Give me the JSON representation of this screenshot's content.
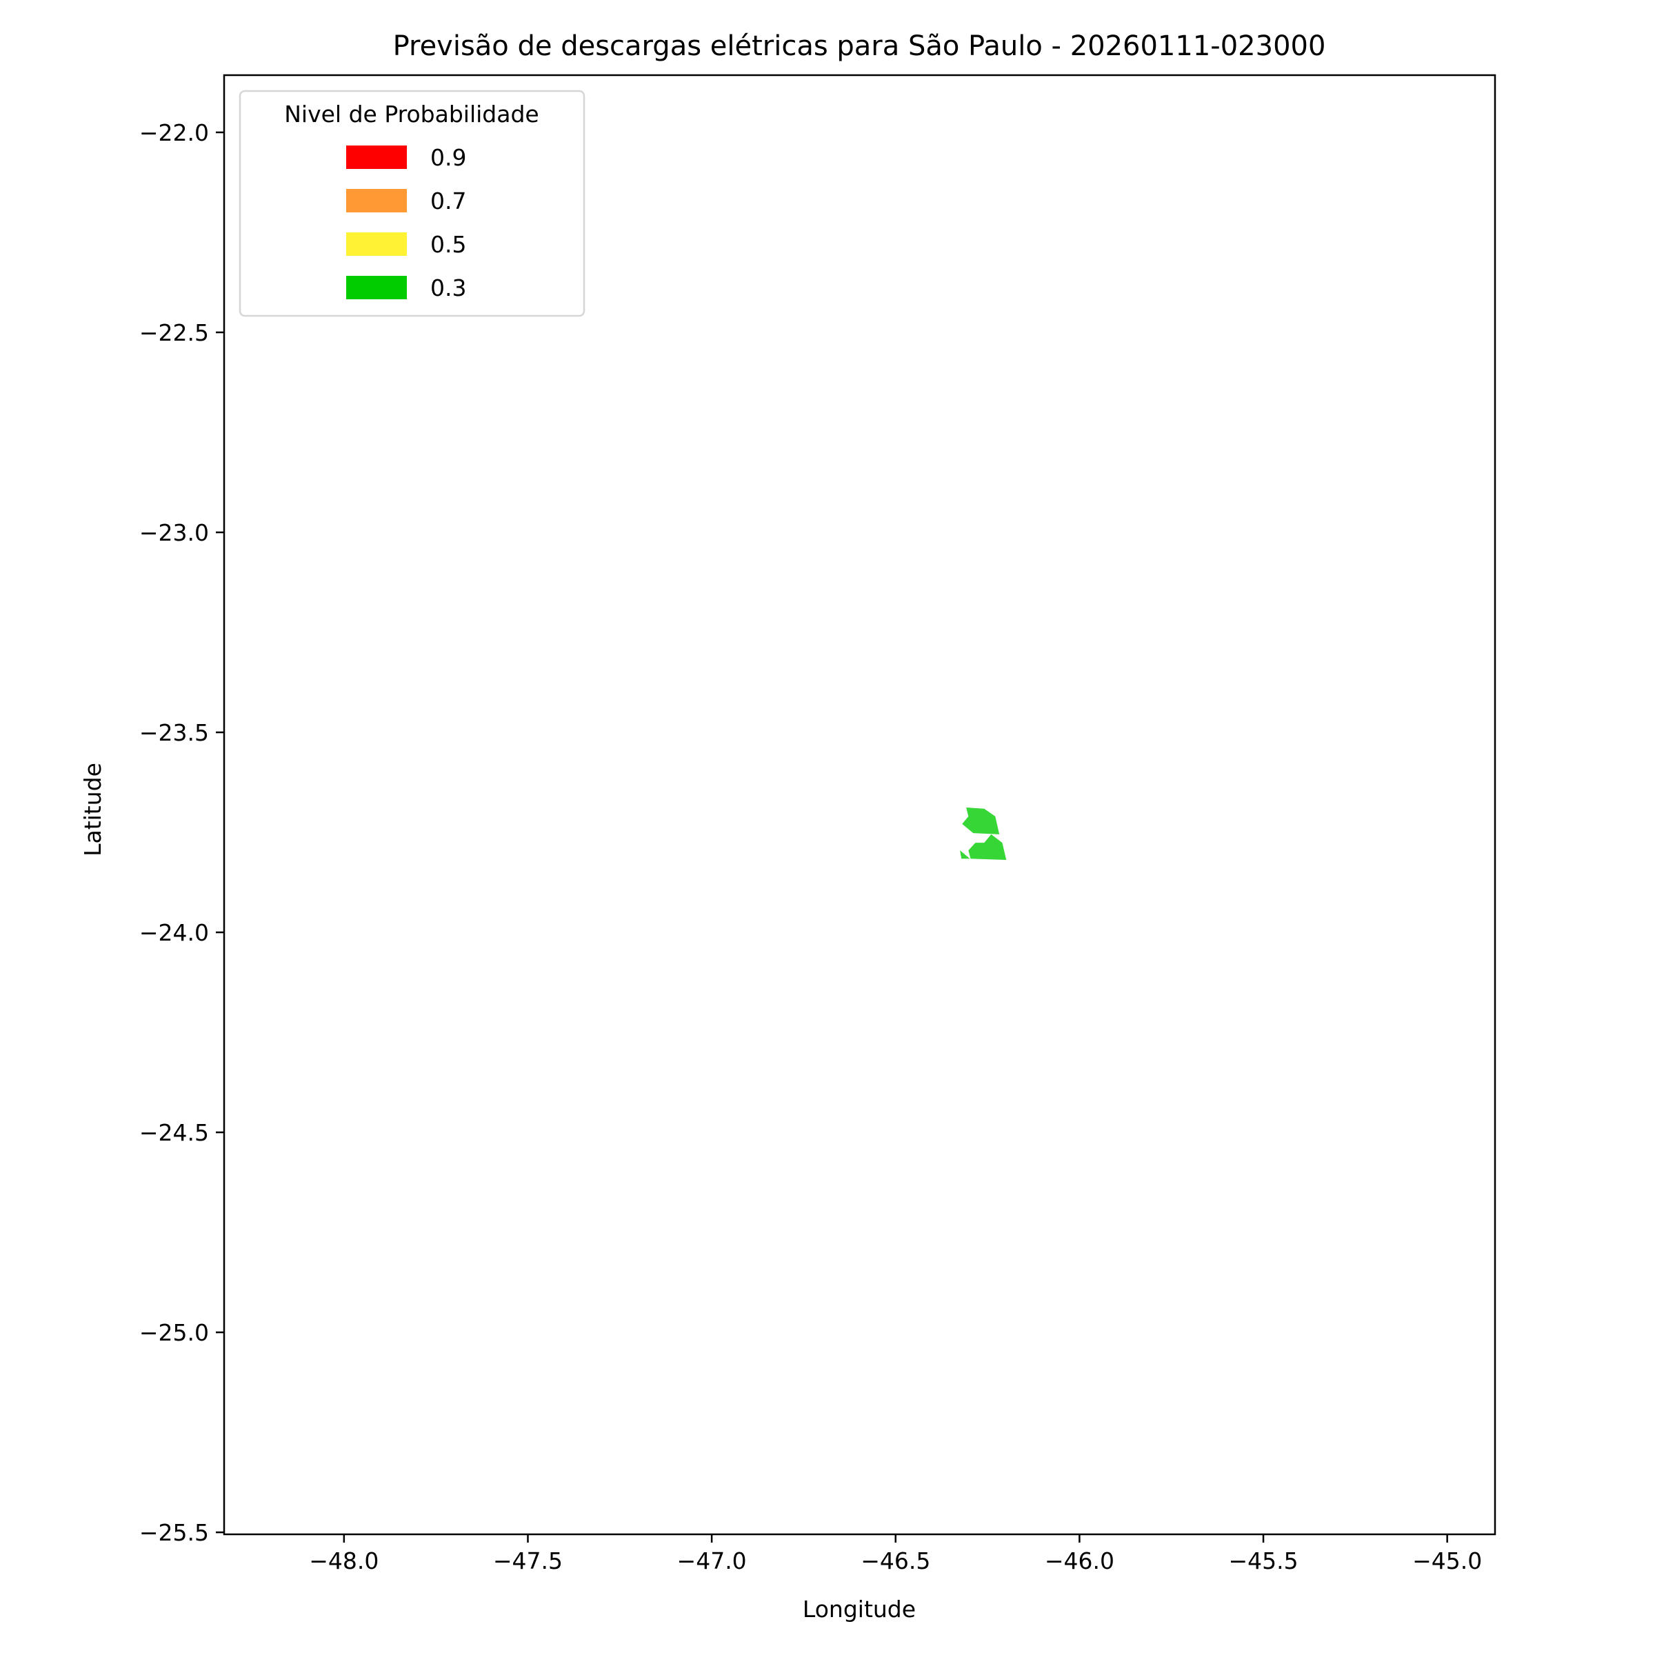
{
  "chart_data": {
    "type": "area",
    "title": "Previsão de descargas elétricas para São Paulo - 20260111-023000",
    "xlabel": "Longitude",
    "ylabel": "Latitude",
    "xlim": [
      -48.326,
      -44.87
    ],
    "ylim": [
      -25.505,
      -21.857
    ],
    "xticks": [
      -48.0,
      -47.5,
      -47.0,
      -46.5,
      -46.0,
      -45.5,
      -45.0
    ],
    "xtick_labels": [
      "−48.0",
      "−47.5",
      "−47.0",
      "−46.5",
      "−46.0",
      "−45.5",
      "−45.0"
    ],
    "yticks": [
      -22.0,
      -22.5,
      -23.0,
      -23.5,
      -24.0,
      -24.5,
      -25.0,
      -25.5
    ],
    "ytick_labels": [
      "−22.0",
      "−22.5",
      "−23.0",
      "−23.5",
      "−24.0",
      "−24.5",
      "−25.0",
      "−25.5"
    ],
    "grid": false,
    "legend": {
      "title": "Nivel de Probabilidade",
      "placement": "upper-left",
      "entries": [
        {
          "label": "0.9",
          "color": "#ff0000"
        },
        {
          "label": "0.7",
          "color": "#ff9933"
        },
        {
          "label": "0.5",
          "color": "#fff133"
        },
        {
          "label": "0.3",
          "color": "#00cc00"
        }
      ]
    },
    "polygons": [
      {
        "level": 0.3,
        "color": "#36d636",
        "points": [
          [
            -46.308,
            -23.688
          ],
          [
            -46.259,
            -23.691
          ],
          [
            -46.229,
            -23.71
          ],
          [
            -46.218,
            -23.755
          ],
          [
            -46.289,
            -23.752
          ],
          [
            -46.319,
            -23.729
          ],
          [
            -46.302,
            -23.71
          ]
        ]
      },
      {
        "level": 0.3,
        "color": "#36d636",
        "points": [
          [
            -46.24,
            -23.755
          ],
          [
            -46.21,
            -23.776
          ],
          [
            -46.199,
            -23.819
          ],
          [
            -46.296,
            -23.816
          ],
          [
            -46.302,
            -23.795
          ],
          [
            -46.283,
            -23.776
          ],
          [
            -46.259,
            -23.776
          ]
        ]
      },
      {
        "level": 0.3,
        "color": "#36d636",
        "points": [
          [
            -46.325,
            -23.795
          ],
          [
            -46.298,
            -23.816
          ],
          [
            -46.321,
            -23.816
          ]
        ]
      }
    ]
  }
}
